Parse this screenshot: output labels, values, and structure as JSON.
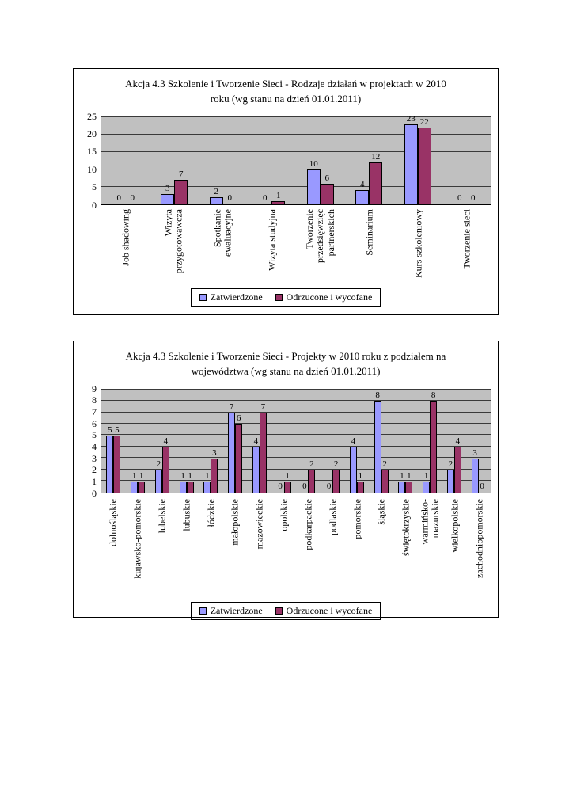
{
  "colors": {
    "series1": "#9999FF",
    "series2": "#993366",
    "plot_bg": "#C0C0C0",
    "page_bg": "#FFFFFF"
  },
  "chart_data": [
    {
      "type": "bar",
      "title": "Akcja 4.3 Szkolenie i Tworzenie Sieci - Rodzaje działań w projektach w 2010 roku (wg stanu na dzień 01.01.2011)",
      "categories": [
        "Job shadowing",
        "Wizyta przygotowawcza",
        "Spotkanie ewaluacyjne",
        "Wizyta studyjna",
        "Tworzenie przedsięwzięć partnerskich",
        "Seminarium",
        "Kurs szkoleniowy",
        "Tworzenie sieci"
      ],
      "series": [
        {
          "name": "Zatwierdzone",
          "values": [
            0,
            3,
            2,
            0,
            10,
            4,
            23,
            0
          ]
        },
        {
          "name": "Odrzucone i wycofane",
          "values": [
            0,
            7,
            0,
            1,
            6,
            12,
            22,
            0
          ]
        }
      ],
      "ylim": [
        0,
        25
      ],
      "ytick_step": 5,
      "grid": true,
      "legend_position": "bottom",
      "data_labels": true
    },
    {
      "type": "bar",
      "title": "Akcja 4.3 Szkolenie i Tworzenie Sieci - Projekty w 2010 roku z podziałem na województwa (wg stanu na dzień 01.01.2011)",
      "categories": [
        "dolnośląskie",
        "kujawsko-pomorskie",
        "lubelskie",
        "lubuskie",
        "łódzkie",
        "małopolskie",
        "mazowieckie",
        "opolskie",
        "podkarpackie",
        "podlaskie",
        "pomorskie",
        "śląskie",
        "świętokrzyskie",
        "warmińsko-\nmazurskie",
        "wielkopolskie",
        "zachodniopomorskie"
      ],
      "series": [
        {
          "name": "Zatwierdzone",
          "values": [
            5,
            1,
            2,
            1,
            1,
            7,
            4,
            0,
            0,
            0,
            4,
            8,
            1,
            1,
            2,
            3
          ]
        },
        {
          "name": "Odrzucone i wycofane",
          "values": [
            5,
            1,
            4,
            1,
            3,
            6,
            7,
            1,
            2,
            2,
            1,
            2,
            1,
            8,
            4,
            0
          ]
        }
      ],
      "ylim": [
        0,
        9
      ],
      "ytick_step": 1,
      "grid": true,
      "legend_position": "bottom",
      "data_labels": true
    }
  ]
}
